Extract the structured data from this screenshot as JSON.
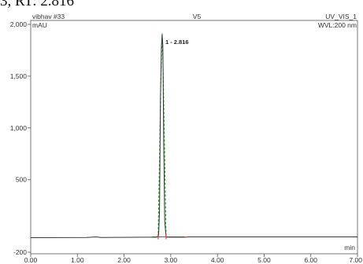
{
  "caption": "3, RT: 2.816",
  "chart_data": {
    "type": "line",
    "header": {
      "left": "vibhav #33",
      "center": "V5",
      "right": "UV_VIS_1"
    },
    "ylabel": "mAU",
    "wavelength_label": "WVL:200 nm",
    "xlabel": "min",
    "xlim": [
      0,
      7
    ],
    "ylim": [
      -200,
      2000
    ],
    "x_ticks": [
      "0.00",
      "1.00",
      "2.00",
      "3.00",
      "4.00",
      "5.00",
      "6.00",
      "7.00"
    ],
    "x_tick_values": [
      0,
      1,
      2,
      3,
      4,
      5,
      6,
      7
    ],
    "y_ticks": [
      "2,000",
      "1,500",
      "1,000",
      "500",
      "-200"
    ],
    "y_tick_values": [
      2000,
      1500,
      1000,
      500,
      -200
    ],
    "series": [
      {
        "x": [
          0,
          1.2,
          1.4,
          1.5,
          2.5,
          2.7,
          2.74,
          2.76,
          2.78,
          2.8,
          2.816,
          2.83,
          2.85,
          2.87,
          2.9,
          2.95,
          3.1,
          3.3,
          3.4,
          7
        ],
        "y": [
          -60,
          -58,
          -52,
          -58,
          -55,
          -55,
          -40,
          200,
          1300,
          1780,
          1900,
          1800,
          800,
          100,
          -52,
          -55,
          -55,
          -55,
          -52,
          -52
        ],
        "color": "#33333a"
      }
    ],
    "peaks": [
      {
        "label": "1 - 2.816",
        "x": 2.816,
        "y": 1900
      }
    ],
    "colors": {
      "baseline": "#00aa00",
      "peak_marker": "#ff3333",
      "frame": "#555555"
    }
  }
}
